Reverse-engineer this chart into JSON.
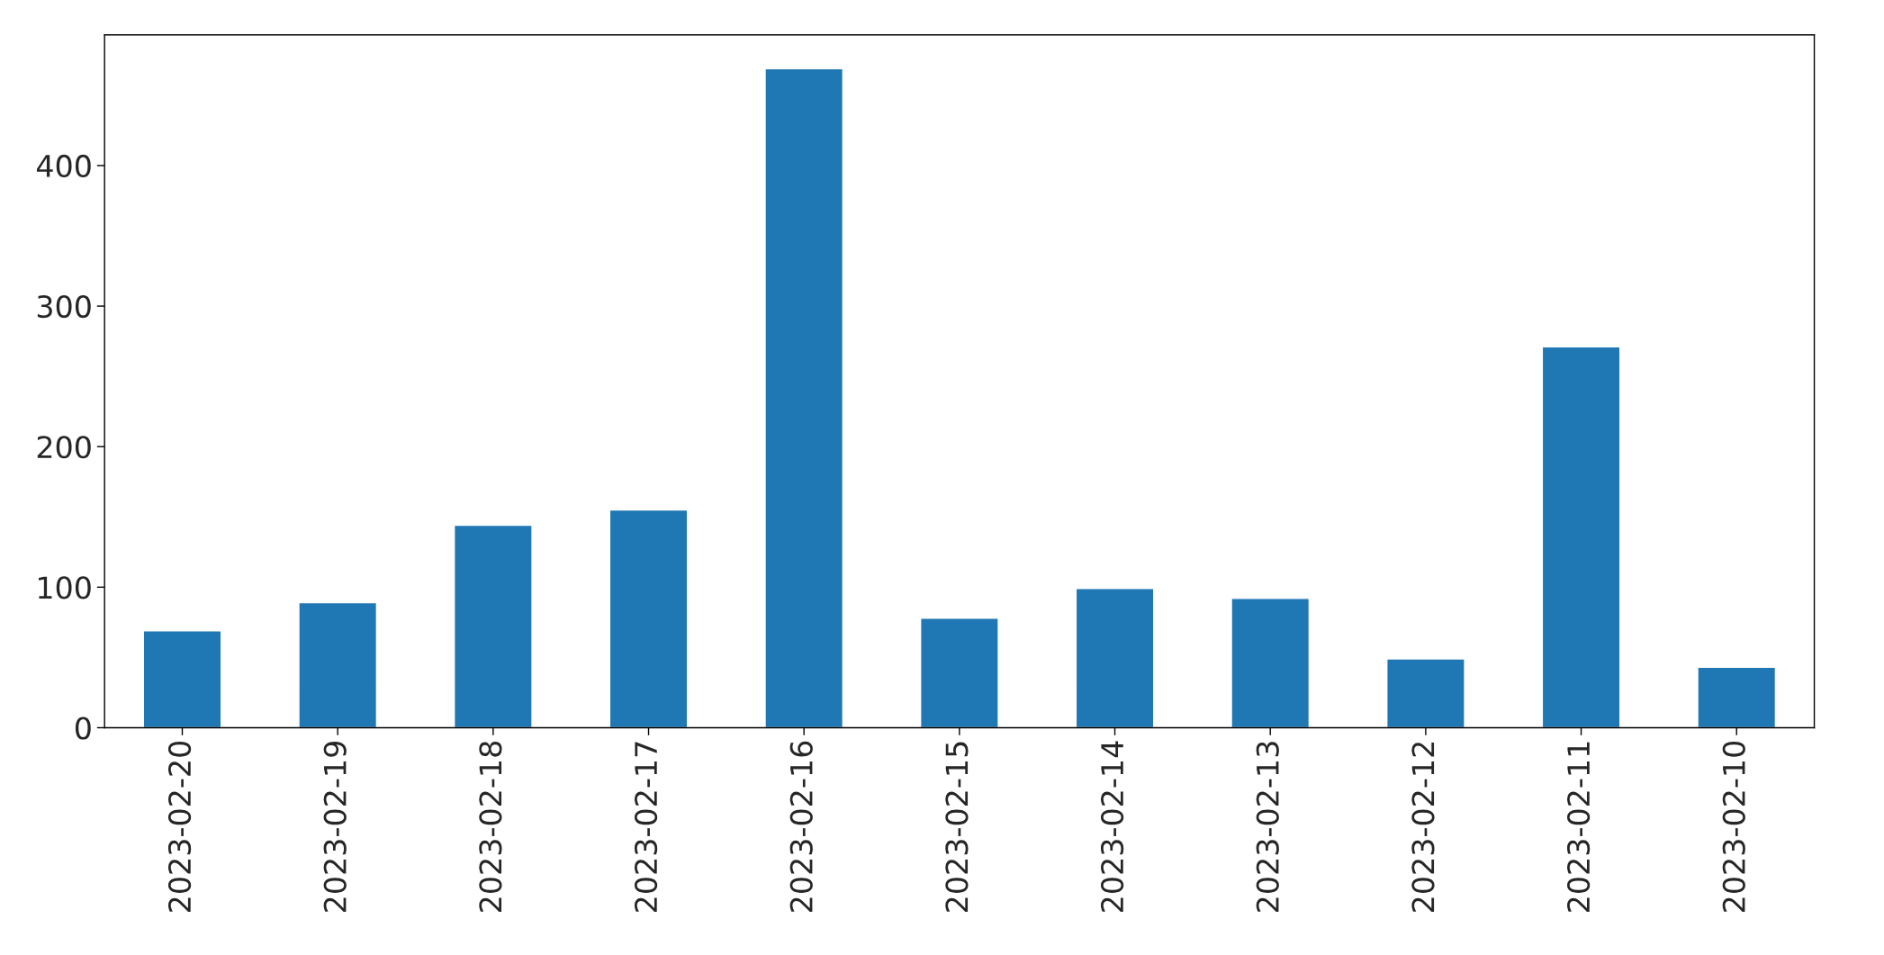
{
  "chart_data": {
    "type": "bar",
    "categories": [
      "2023-02-20",
      "2023-02-19",
      "2023-02-18",
      "2023-02-17",
      "2023-02-16",
      "2023-02-15",
      "2023-02-14",
      "2023-02-13",
      "2023-02-12",
      "2023-02-11",
      "2023-02-10"
    ],
    "values": [
      69,
      89,
      144,
      155,
      469,
      78,
      99,
      92,
      49,
      271,
      43
    ],
    "color": "#1f77b4",
    "ylim": [
      0,
      493
    ],
    "yticks": [
      0,
      100,
      200,
      300,
      400
    ],
    "grid": false,
    "legend": false
  }
}
